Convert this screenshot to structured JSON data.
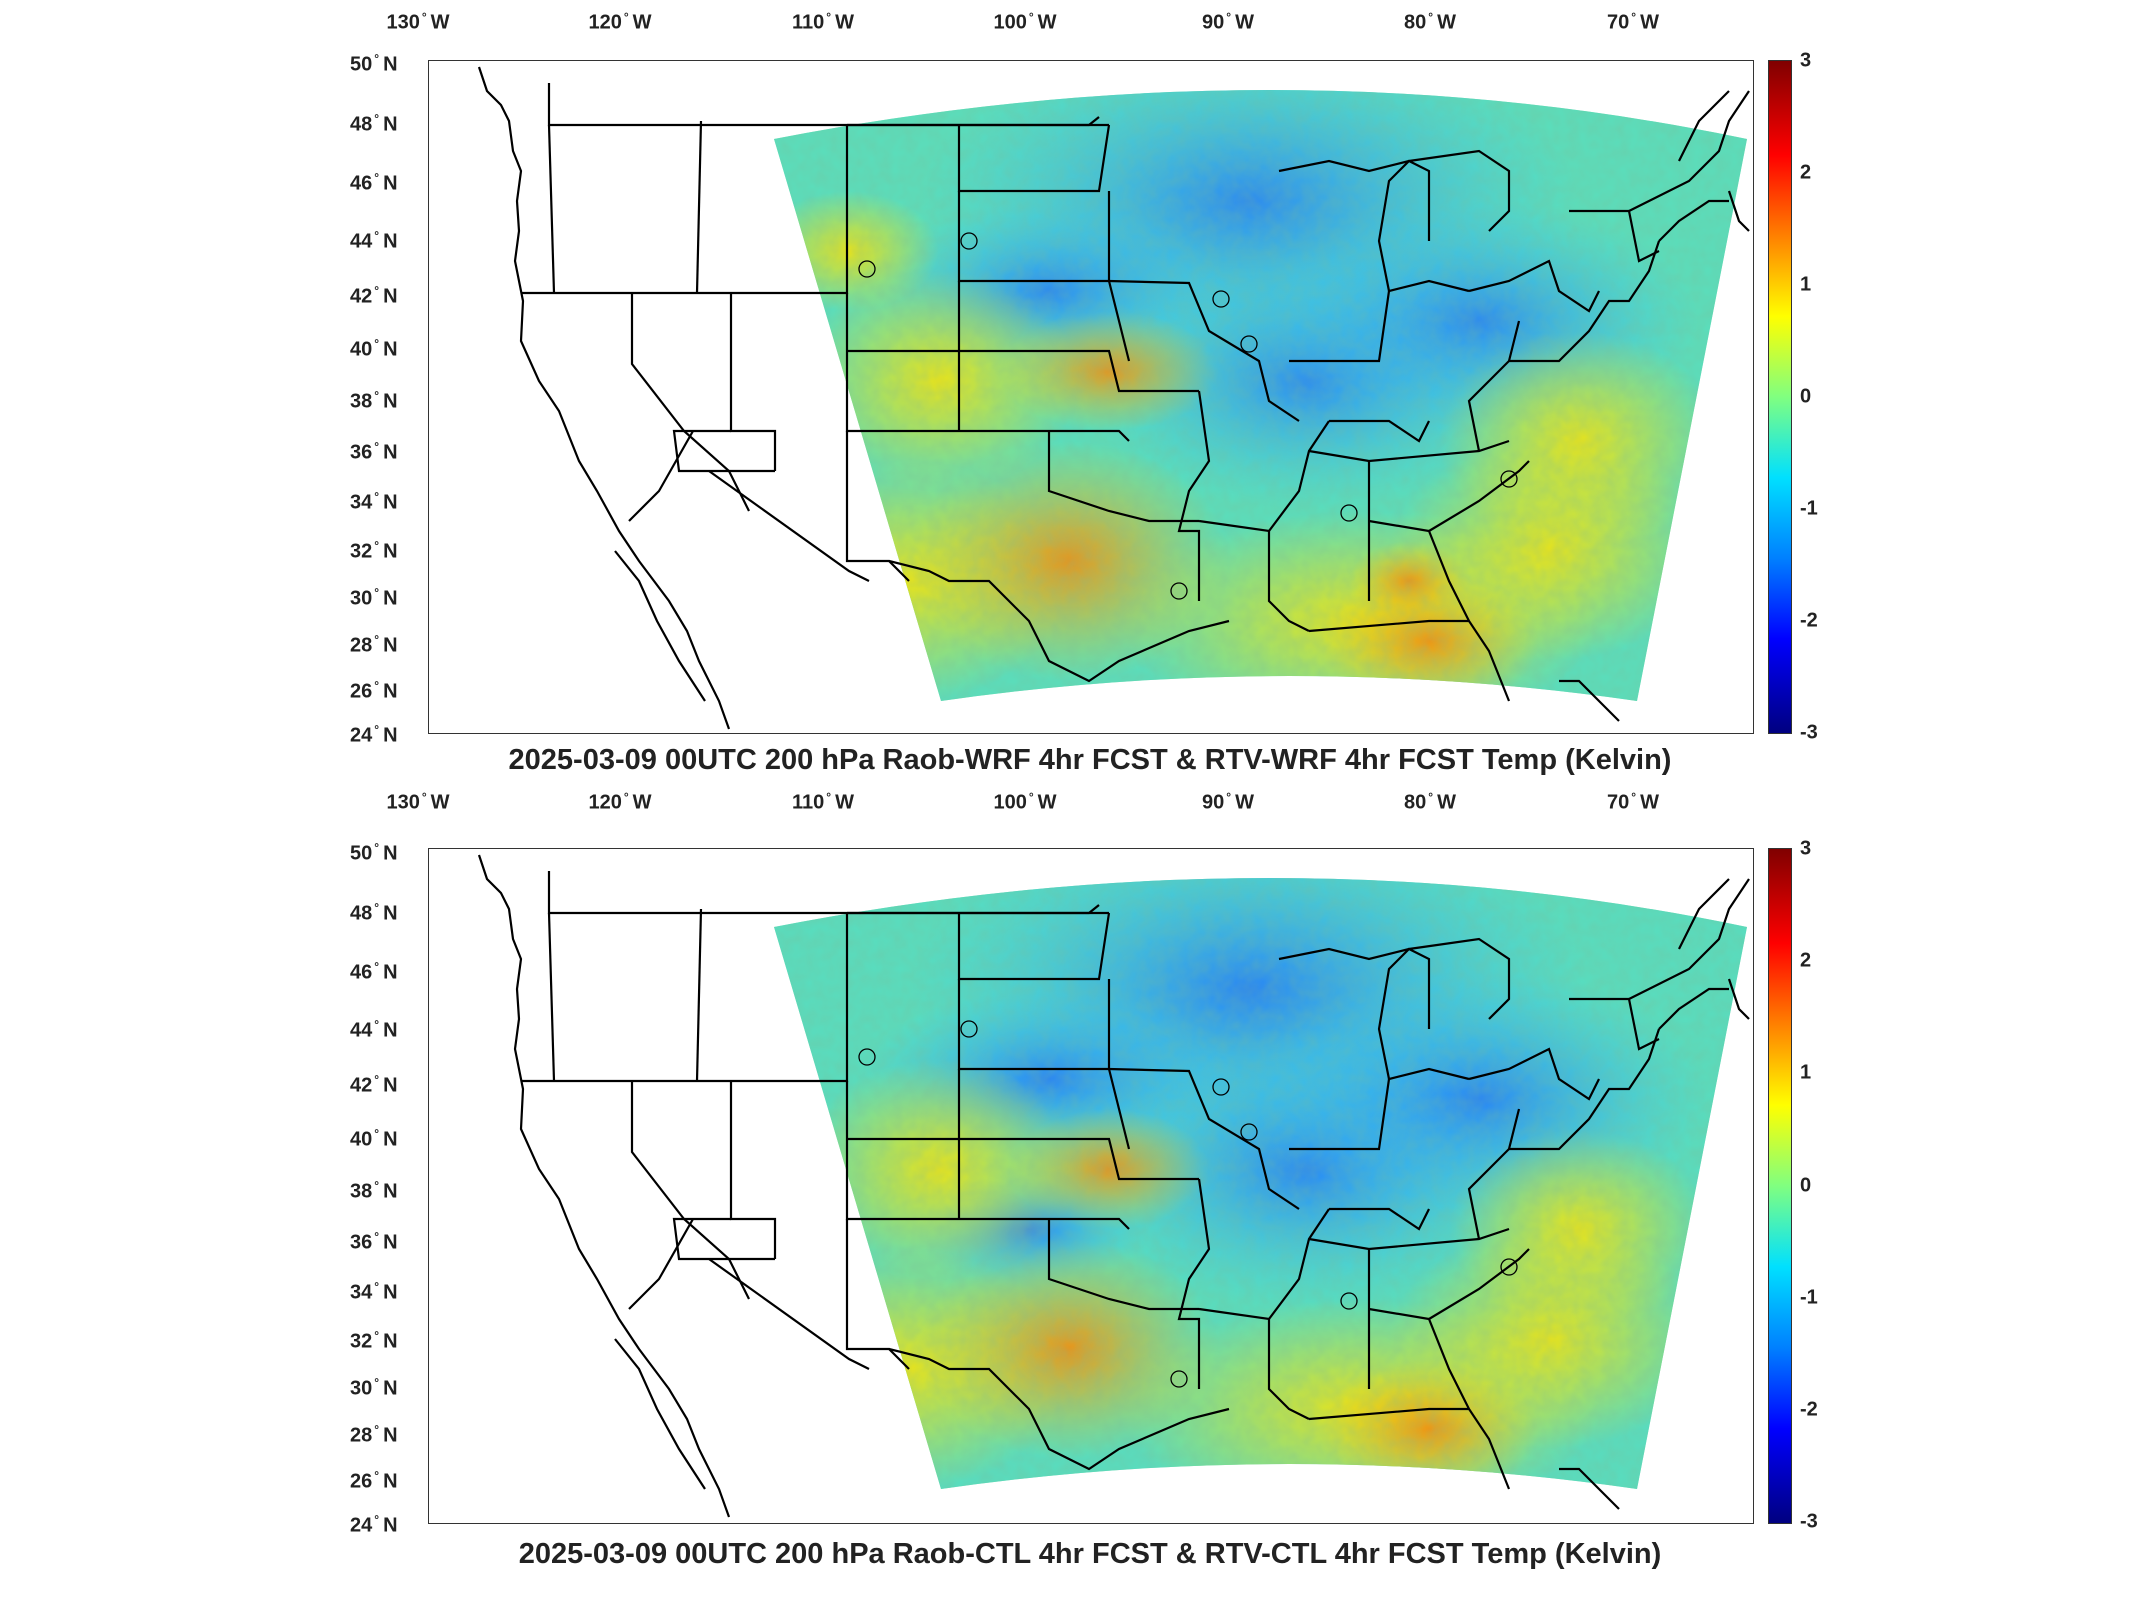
{
  "panels": [
    {
      "title": "2025-03-09 00UTC 200 hPa Raob-WRF 4hr FCST & RTV-WRF 4hr FCST Temp (Kelvin)",
      "lon_labels": [
        "130",
        "120",
        "110",
        "100",
        "90",
        "80",
        "70"
      ],
      "lat_labels": [
        "50",
        "48",
        "46",
        "44",
        "42",
        "40",
        "38",
        "36",
        "34",
        "32",
        "30",
        "28",
        "26",
        "24"
      ],
      "colorbar_ticks": [
        "3",
        "2",
        "1",
        "0",
        "-1",
        "-2",
        "-3"
      ]
    },
    {
      "title": "2025-03-09 00UTC 200 hPa Raob-CTL 4hr FCST & RTV-CTL 4hr FCST Temp (Kelvin)",
      "lon_labels": [
        "130",
        "120",
        "110",
        "100",
        "90",
        "80",
        "70"
      ],
      "lat_labels": [
        "50",
        "48",
        "46",
        "44",
        "42",
        "40",
        "38",
        "36",
        "34",
        "32",
        "30",
        "28",
        "26",
        "24"
      ],
      "colorbar_ticks": [
        "3",
        "2",
        "1",
        "0",
        "-1",
        "-2",
        "-3"
      ]
    }
  ],
  "units": {
    "lon": "W",
    "lat": "N"
  },
  "colorbar": {
    "min": -3,
    "max": 3,
    "colormap": "jet"
  },
  "colors": {
    "warm": "#ff8a00",
    "cool": "#1ea0ff",
    "neutral": "#8cf06e"
  }
}
